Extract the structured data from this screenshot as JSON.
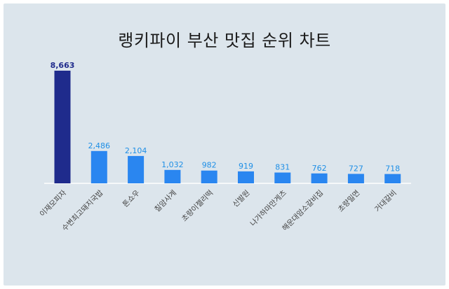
{
  "chart_data": {
    "type": "bar",
    "title": "랭키파이 부산 맛집 순위 차트",
    "categories": [
      "이재모피자",
      "수변최고돼지국밥",
      "톤쇼우",
      "칠암사계",
      "초량이젤리떡",
      "신발원",
      "나가하마만게츠",
      "해운대암소갈비집",
      "초량밀면",
      "거대갈비"
    ],
    "values": [
      8663,
      2486,
      2104,
      1032,
      982,
      919,
      831,
      762,
      727,
      718
    ],
    "value_labels": [
      "8,663",
      "2,486",
      "2,104",
      "1,032",
      "982",
      "919",
      "831",
      "762",
      "727",
      "718"
    ],
    "ylim": [
      0,
      8663
    ],
    "grid": false,
    "colors": {
      "highlight": "#1f2b8c",
      "bar": "#2a86f0",
      "label": "#1f8fe6",
      "background": "#dce5ec"
    }
  }
}
